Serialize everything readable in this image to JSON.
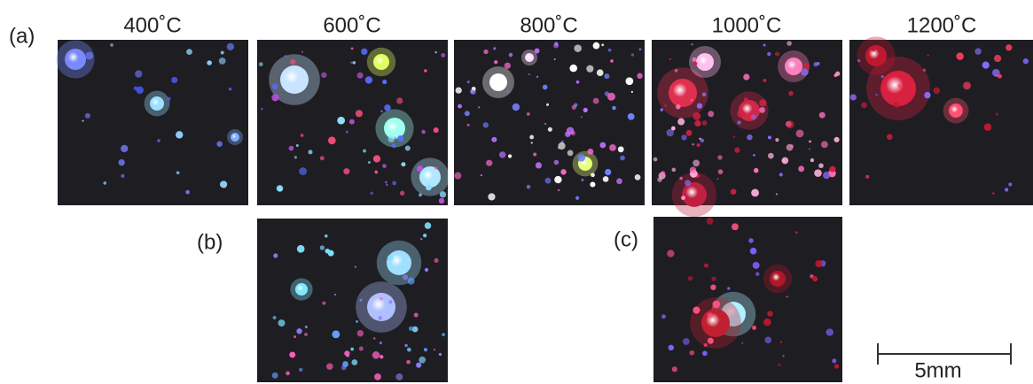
{
  "panel_label_a": "(a)",
  "panel_label_b": "(b)",
  "panel_label_c": "(c)",
  "temperatures": [
    "400˚C",
    "600˚C",
    "800˚C",
    "1000˚C",
    "1200˚C"
  ],
  "scale_bar_label": "5mm"
}
